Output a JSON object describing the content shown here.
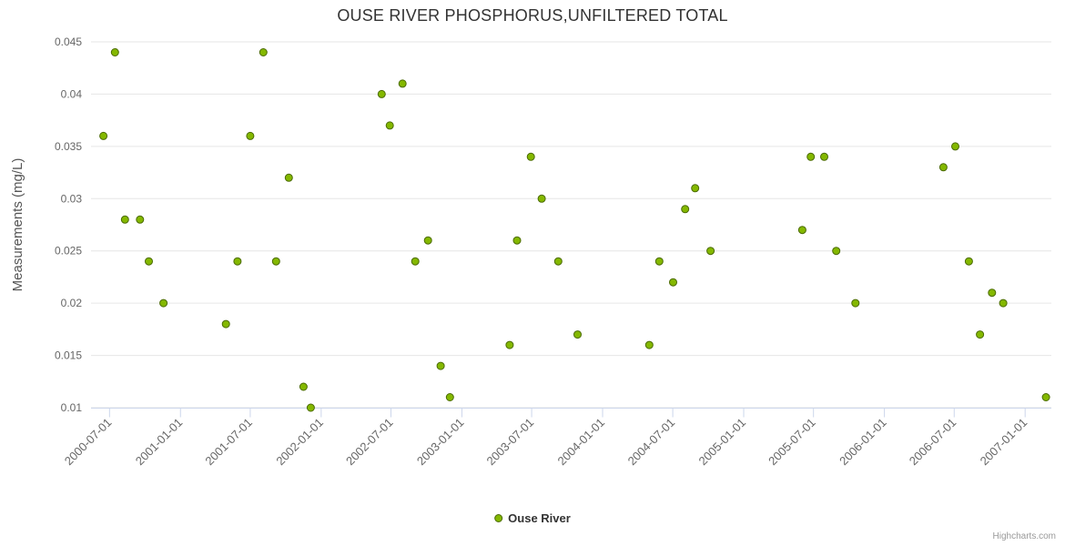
{
  "credits": "Highcharts.com",
  "chart_data": {
    "type": "scatter",
    "title": "OUSE RIVER PHOSPHORUS,UNFILTERED TOTAL",
    "xlabel": "",
    "ylabel": "Measurements (mg/L)",
    "ylim": [
      0.01,
      0.045
    ],
    "y_ticks": [
      0.01,
      0.015,
      0.02,
      0.025,
      0.03,
      0.035,
      0.04,
      0.045
    ],
    "x_range": [
      "2000-05-14",
      "2007-03-10"
    ],
    "x_ticks": [
      "2000-07-01",
      "2001-01-01",
      "2001-07-01",
      "2002-01-01",
      "2002-07-01",
      "2003-01-01",
      "2003-07-01",
      "2004-01-01",
      "2004-07-01",
      "2005-01-01",
      "2005-07-01",
      "2006-01-01",
      "2006-07-01",
      "2007-01-01"
    ],
    "grid": "horizontal",
    "legend_position": "bottom-center",
    "series": [
      {
        "name": "Ouse River",
        "color": "#84b800",
        "border_color": "#4a6a00",
        "points": [
          [
            "2000-06-15",
            0.036
          ],
          [
            "2000-07-15",
            0.044
          ],
          [
            "2000-08-10",
            0.028
          ],
          [
            "2000-09-18",
            0.028
          ],
          [
            "2000-10-11",
            0.024
          ],
          [
            "2000-11-18",
            0.02
          ],
          [
            "2001-04-29",
            0.018
          ],
          [
            "2001-05-29",
            0.024
          ],
          [
            "2001-07-01",
            0.036
          ],
          [
            "2001-08-04",
            0.044
          ],
          [
            "2001-09-06",
            0.024
          ],
          [
            "2001-10-09",
            0.032
          ],
          [
            "2001-11-16",
            0.012
          ],
          [
            "2001-12-05",
            0.01
          ],
          [
            "2002-06-07",
            0.04
          ],
          [
            "2002-06-28",
            0.037
          ],
          [
            "2002-07-31",
            0.041
          ],
          [
            "2002-09-02",
            0.024
          ],
          [
            "2002-10-05",
            0.026
          ],
          [
            "2002-11-07",
            0.014
          ],
          [
            "2002-12-01",
            0.011
          ],
          [
            "2003-05-05",
            0.016
          ],
          [
            "2003-05-24",
            0.026
          ],
          [
            "2003-06-29",
            0.034
          ],
          [
            "2003-07-27",
            0.03
          ],
          [
            "2003-09-08",
            0.024
          ],
          [
            "2003-10-28",
            0.017
          ],
          [
            "2004-05-01",
            0.016
          ],
          [
            "2004-05-27",
            0.024
          ],
          [
            "2004-07-02",
            0.022
          ],
          [
            "2004-08-02",
            0.029
          ],
          [
            "2004-08-28",
            0.031
          ],
          [
            "2004-10-07",
            0.025
          ],
          [
            "2005-06-02",
            0.027
          ],
          [
            "2005-06-24",
            0.034
          ],
          [
            "2005-07-29",
            0.034
          ],
          [
            "2005-08-29",
            0.025
          ],
          [
            "2005-10-18",
            0.02
          ],
          [
            "2006-06-03",
            0.033
          ],
          [
            "2006-07-04",
            0.035
          ],
          [
            "2006-08-08",
            0.024
          ],
          [
            "2006-09-06",
            0.017
          ],
          [
            "2006-10-07",
            0.021
          ],
          [
            "2006-11-05",
            0.02
          ],
          [
            "2007-02-24",
            0.011
          ]
        ]
      }
    ]
  }
}
